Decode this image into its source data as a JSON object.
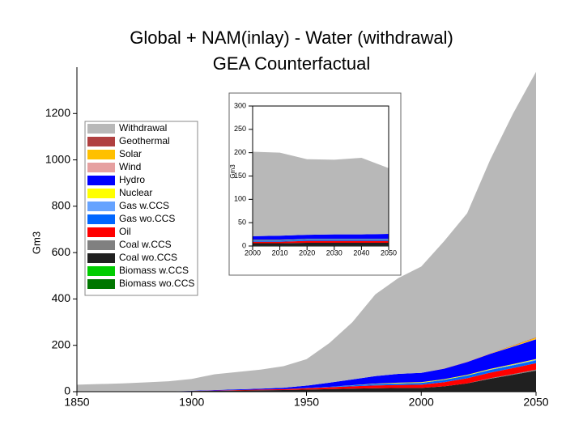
{
  "chart_data": [
    {
      "type": "stacked_area",
      "title": "Global + NAM(inlay) - Water (withdrawal)",
      "subtitle": "GEA Counterfactual",
      "y_label": "Gm3",
      "x": [
        1850,
        1860,
        1870,
        1880,
        1890,
        1900,
        1910,
        1920,
        1930,
        1940,
        1950,
        1960,
        1970,
        1980,
        1990,
        2000,
        2010,
        2020,
        2030,
        2040,
        2050
      ],
      "xlim": [
        1850,
        2050
      ],
      "xticks": [
        1850,
        1900,
        1950,
        2000,
        2050
      ],
      "ylim": [
        0,
        1400
      ],
      "yticks": [
        0,
        200,
        400,
        600,
        800,
        1000,
        1200
      ],
      "legend": "upper left",
      "series": [
        {
          "name": "Withdrawal",
          "color": "#b8b8b8",
          "values": [
            29,
            32,
            35,
            39,
            44,
            51,
            68,
            75,
            82,
            93,
            114,
            171,
            247,
            353,
            413,
            459,
            550,
            640,
            834,
            1000,
            1145
          ]
        },
        {
          "name": "Geothermal",
          "color": "#b04040",
          "values": [
            0,
            0,
            0,
            0,
            0,
            0,
            0,
            0,
            0,
            0,
            0,
            0,
            0,
            0,
            0,
            0,
            1,
            1,
            1,
            2,
            2
          ]
        },
        {
          "name": "Solar",
          "color": "#ffc000",
          "values": [
            0,
            0,
            0,
            0,
            0,
            0,
            0,
            0,
            0,
            0,
            0,
            0,
            0,
            0,
            0,
            0,
            0,
            0,
            1,
            3,
            6
          ]
        },
        {
          "name": "Wind",
          "color": "#e6a0a0",
          "values": [
            0,
            0,
            0,
            0,
            0,
            0,
            0,
            0,
            0,
            0,
            0,
            0,
            0,
            0,
            0,
            0,
            0,
            1,
            1,
            1,
            1
          ]
        },
        {
          "name": "Hydro",
          "color": "#0000ff",
          "values": [
            0,
            0,
            0,
            0,
            0,
            1,
            2,
            3,
            4,
            6,
            10,
            18,
            25,
            32,
            38,
            40,
            45,
            55,
            65,
            75,
            85
          ]
        },
        {
          "name": "Nuclear",
          "color": "#ffff00",
          "values": [
            0,
            0,
            0,
            0,
            0,
            0,
            0,
            0,
            0,
            0,
            0,
            0,
            1,
            2,
            3,
            3,
            3,
            3,
            3,
            3,
            3
          ]
        },
        {
          "name": "Gas w.CCS",
          "color": "#66a3ff",
          "values": [
            0,
            0,
            0,
            0,
            0,
            0,
            0,
            0,
            0,
            0,
            0,
            0,
            0,
            0,
            0,
            0,
            0,
            0,
            1,
            2,
            3
          ]
        },
        {
          "name": "Gas wo.CCS",
          "color": "#0066ff",
          "values": [
            0,
            0,
            0,
            0,
            0,
            0,
            0,
            0,
            0,
            0,
            1,
            2,
            4,
            6,
            7,
            8,
            10,
            12,
            12,
            12,
            12
          ]
        },
        {
          "name": "Oil",
          "color": "#ff0000",
          "values": [
            0,
            0,
            0,
            0,
            0,
            0,
            1,
            2,
            3,
            4,
            6,
            8,
            10,
            12,
            13,
            14,
            18,
            22,
            24,
            26,
            28
          ]
        },
        {
          "name": "Coal w.CCS",
          "color": "#808080",
          "values": [
            0,
            0,
            0,
            0,
            0,
            0,
            0,
            0,
            0,
            0,
            0,
            0,
            0,
            0,
            0,
            0,
            0,
            0,
            2,
            3,
            4
          ]
        },
        {
          "name": "Coal wo.CCS",
          "color": "#202020",
          "values": [
            0,
            0,
            0,
            0,
            0,
            2,
            3,
            4,
            5,
            6,
            8,
            10,
            12,
            14,
            15,
            15,
            22,
            35,
            55,
            72,
            90
          ]
        },
        {
          "name": "Biomass w.CCS",
          "color": "#00cc00",
          "values": [
            0,
            0,
            0,
            0,
            0,
            0,
            0,
            0,
            0,
            0,
            0,
            0,
            0,
            0,
            0,
            0,
            0,
            0,
            0,
            0,
            0
          ]
        },
        {
          "name": "Biomass wo.CCS",
          "color": "#007700",
          "values": [
            1,
            1,
            1,
            1,
            1,
            1,
            1,
            1,
            1,
            1,
            1,
            1,
            1,
            1,
            1,
            1,
            1,
            1,
            1,
            1,
            1
          ]
        }
      ]
    },
    {
      "type": "stacked_area",
      "y_label": "Gm3",
      "x": [
        2000,
        2010,
        2020,
        2030,
        2040,
        2050
      ],
      "xlim": [
        2000,
        2050
      ],
      "xticks": [
        2000,
        2010,
        2020,
        2030,
        2040,
        2050
      ],
      "ylim": [
        0,
        300
      ],
      "yticks": [
        0,
        50,
        100,
        150,
        200,
        250,
        300
      ],
      "series": [
        {
          "name": "Withdrawal",
          "color": "#b8b8b8",
          "values": [
            181,
            178,
            162,
            160,
            164,
            141
          ]
        },
        {
          "name": "Hydro",
          "color": "#0000ff",
          "values": [
            8,
            9,
            9,
            10,
            10,
            11
          ]
        },
        {
          "name": "Nuclear",
          "color": "#ffff00",
          "values": [
            1,
            1,
            1,
            1,
            1,
            1
          ]
        },
        {
          "name": "Gas wo.CCS",
          "color": "#0066ff",
          "values": [
            3,
            3,
            3,
            3,
            3,
            3
          ]
        },
        {
          "name": "Oil",
          "color": "#ff0000",
          "values": [
            3,
            3,
            4,
            4,
            4,
            4
          ]
        },
        {
          "name": "Coal wo.CCS",
          "color": "#202020",
          "values": [
            5,
            5,
            6,
            6,
            6,
            6
          ]
        },
        {
          "name": "Biomass wo.CCS",
          "color": "#007700",
          "values": [
            1,
            1,
            1,
            1,
            1,
            1
          ]
        }
      ]
    }
  ]
}
